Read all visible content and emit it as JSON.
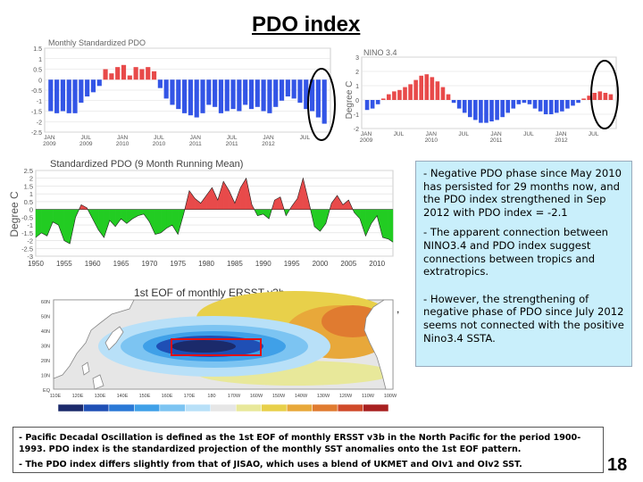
{
  "title": "PDO index",
  "page_number": "18",
  "colors": {
    "positive": "#e84a4a",
    "negative": "#3355e6",
    "running_pos": "#e84a4a",
    "running_neg": "#22cc22",
    "textbox_bg": "#c9effb"
  },
  "notes": [
    "- Negative PDO phase since May 2010 has persisted for 29 months now, and the PDO index strengthened in Sep 2012 with PDO index = -2.1",
    "- The apparent connection between NINO3.4 and PDO index suggest connections between tropics and extratropics.",
    "- However, the strengthening of negative phase of PDO since July 2012 seems not connected with the positive Nino3.4 SSTA."
  ],
  "footnote": {
    "line1": "- Pacific Decadal Oscillation is defined as the 1st EOF of monthly ERSST v3b in the North Pacific for the period 1900-1993. PDO index is the standardized projection of the monthly SST anomalies onto the 1st EOF pattern.",
    "line2": "- The PDO index differs slightly from that of JISAO, which uses a blend of UKMET and OIv1 and OIv2 SST."
  },
  "map": {
    "title": "1st EOF of monthly ERSST v3b",
    "lat_labels": [
      "60N",
      "50N",
      "40N",
      "30N",
      "20N",
      "10N",
      "EQ"
    ],
    "lon_labels": [
      "110E",
      "120E",
      "130E",
      "140E",
      "150E",
      "160E",
      "170E",
      "180",
      "170W",
      "160W",
      "150W",
      "140W",
      "130W",
      "120W",
      "110W",
      "100W"
    ],
    "colorbar": [
      "#1b2a6b",
      "#1f4fb5",
      "#2a78d6",
      "#3fa0e8",
      "#7cc4f2",
      "#b8e0f8",
      "#e6e6e6",
      "#e8e89a",
      "#e8d04a",
      "#e8a83a",
      "#e07b30",
      "#d04a2a",
      "#a82020"
    ]
  },
  "chart_data": [
    {
      "type": "bar",
      "title": "Monthly Standardized PDO",
      "ylabel": "",
      "ylim": [
        -2.5,
        1.5
      ],
      "yticks": [
        1.5,
        1,
        0.5,
        0,
        -0.5,
        -1,
        -1.5,
        -2,
        -2.5
      ],
      "xticks": [
        "JAN\n2009",
        "JUL\n2009",
        "JAN\n2010",
        "JUL\n2010",
        "JAN\n2011",
        "JUL\n2011",
        "JAN\n2012",
        "JUL"
      ],
      "values": [
        -1.5,
        -1.6,
        -1.5,
        -1.6,
        -1.6,
        -1.1,
        -0.8,
        -0.6,
        -0.3,
        0.5,
        0.3,
        0.6,
        0.7,
        0.2,
        0.6,
        0.5,
        0.6,
        0.4,
        -0.4,
        -0.9,
        -1.2,
        -1.4,
        -1.6,
        -1.7,
        -1.8,
        -1.6,
        -1.2,
        -1.3,
        -1.6,
        -1.5,
        -1.4,
        -1.5,
        -1.2,
        -1.4,
        -1.3,
        -1.5,
        -1.6,
        -1.3,
        -1.0,
        -0.8,
        -0.9,
        -1.1,
        -1.4,
        -1.5,
        -1.8,
        -2.1
      ]
    },
    {
      "type": "bar",
      "title": "NINO 3.4",
      "ylabel": "Degree C",
      "ylim": [
        -2,
        3
      ],
      "yticks": [
        3,
        2,
        1,
        0,
        -1,
        -2
      ],
      "xticks": [
        "JAN\n2009",
        "JUL",
        "JAN\n2010",
        "JUL",
        "JAN\n2011",
        "JUL",
        "JAN\n2012",
        "JUL"
      ],
      "values": [
        -0.7,
        -0.6,
        -0.3,
        0.1,
        0.4,
        0.6,
        0.7,
        0.9,
        1.1,
        1.4,
        1.7,
        1.8,
        1.6,
        1.3,
        0.9,
        0.4,
        -0.2,
        -0.6,
        -0.9,
        -1.2,
        -1.4,
        -1.6,
        -1.6,
        -1.5,
        -1.4,
        -1.2,
        -0.9,
        -0.6,
        -0.3,
        -0.2,
        -0.3,
        -0.6,
        -0.8,
        -1.0,
        -1.0,
        -0.9,
        -0.8,
        -0.6,
        -0.4,
        -0.2,
        0.1,
        0.3,
        0.5,
        0.6,
        0.5,
        0.4
      ]
    },
    {
      "type": "area",
      "title": "Standardized PDO (9 Month Running Mean)",
      "ylabel": "Degree C",
      "ylim": [
        -3,
        2.5
      ],
      "yticks": [
        2.5,
        2,
        1.5,
        1,
        0.5,
        0,
        -0.5,
        -1,
        -1.5,
        -2,
        -2.5,
        -3
      ],
      "xlabels": [
        "1950",
        "1955",
        "1960",
        "1965",
        "1970",
        "1975",
        "1980",
        "1985",
        "1990",
        "1995",
        "2000",
        "2005",
        "2010"
      ],
      "xlim": [
        1950,
        2012.8
      ],
      "x": [
        1950,
        1951,
        1952,
        1953,
        1954,
        1955,
        1956,
        1957,
        1958,
        1959,
        1960,
        1961,
        1962,
        1963,
        1964,
        1965,
        1966,
        1967,
        1968,
        1969,
        1970,
        1971,
        1972,
        1973,
        1974,
        1975,
        1976,
        1977,
        1978,
        1979,
        1980,
        1981,
        1982,
        1983,
        1984,
        1985,
        1986,
        1987,
        1988,
        1989,
        1990,
        1991,
        1992,
        1993,
        1994,
        1995,
        1996,
        1997,
        1998,
        1999,
        2000,
        2001,
        2002,
        2003,
        2004,
        2005,
        2006,
        2007,
        2008,
        2009,
        2010,
        2011,
        2012,
        2012.8
      ],
      "y": [
        -1.8,
        -1.5,
        -1.7,
        -0.8,
        -1.0,
        -2.0,
        -2.2,
        -0.5,
        0.3,
        0.1,
        -0.6,
        -1.3,
        -1.8,
        -0.7,
        -1.1,
        -0.6,
        -0.9,
        -0.6,
        -0.4,
        -0.3,
        -0.8,
        -1.6,
        -1.5,
        -1.2,
        -1.0,
        -1.6,
        -0.3,
        1.2,
        0.7,
        0.4,
        0.9,
        1.4,
        0.6,
        1.8,
        1.2,
        0.4,
        1.4,
        2.0,
        0.3,
        -0.4,
        -0.3,
        -0.6,
        0.6,
        0.8,
        -0.4,
        0.2,
        0.7,
        2.0,
        0.5,
        -1.1,
        -1.4,
        -0.9,
        0.4,
        0.9,
        0.3,
        0.6,
        -0.2,
        -0.6,
        -1.7,
        -0.9,
        -0.4,
        -1.8,
        -1.9,
        -2.1
      ]
    }
  ]
}
